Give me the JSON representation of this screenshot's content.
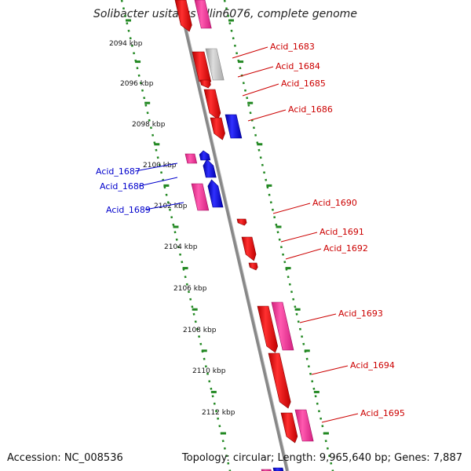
{
  "title": "Solibacter usitatus Ellin6076, complete genome",
  "footer": {
    "accession": "Accession: NC_008536",
    "topology": "Topology: circular; Length: 9,965,640 bp; Genes: 7,887"
  },
  "colors": {
    "forward_gene": "#ee0000",
    "reverse_gene": "#0000ee",
    "pink_gene": "#ff2d96",
    "grey_gene": "#bbbbbb",
    "ruler": "#228822",
    "backbone": "#888888",
    "label_forward": "#cc0000",
    "label_reverse": "#0000cc"
  },
  "kbp_labels": [
    "2094 kbp",
    "2096 kbp",
    "2098 kbp",
    "2100 kbp",
    "2102 kbp",
    "2104 kbp",
    "2106 kbp",
    "2108 kbp",
    "2110 kbp",
    "2112 kbp"
  ],
  "right_labels": [
    "Acid_1683",
    "Acid_1684",
    "Acid_1685",
    "Acid_1686",
    "Acid_1690",
    "Acid_1691",
    "Acid_1692",
    "Acid_1693",
    "Acid_1694",
    "Acid_1695"
  ],
  "left_labels": [
    "Acid_1687",
    "Acid_1688",
    "Acid_1689"
  ]
}
